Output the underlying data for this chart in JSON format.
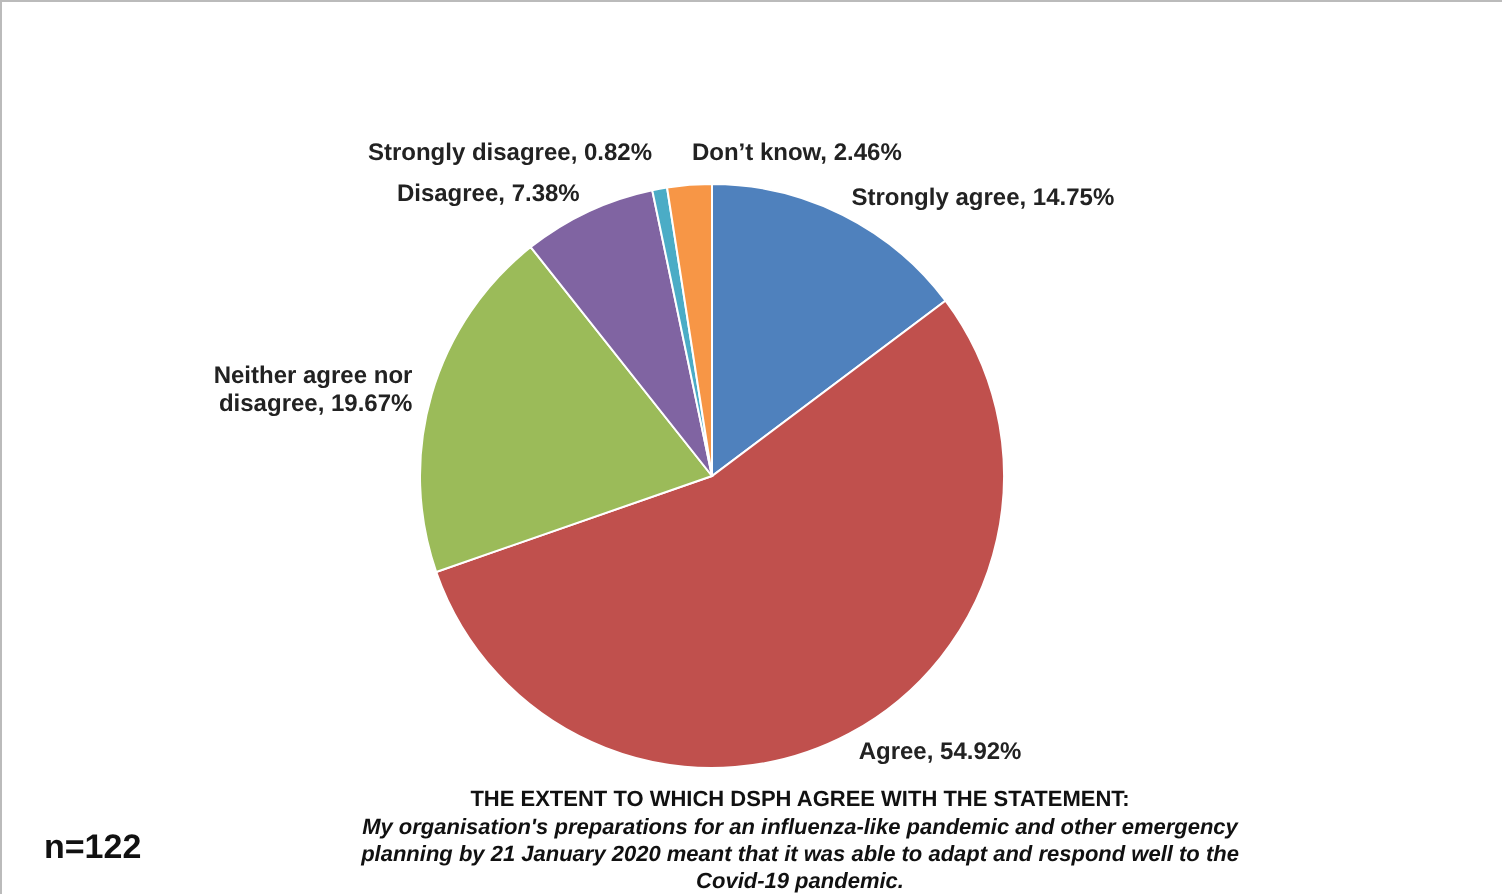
{
  "chart_data": {
    "type": "pie",
    "categories": [
      "Strongly agree",
      "Agree",
      "Neither agree nor disagree",
      "Disagree",
      "Strongly disagree",
      "Don’t know"
    ],
    "values": [
      14.75,
      54.92,
      19.67,
      7.38,
      0.82,
      2.46
    ],
    "value_labels": [
      "14.75%",
      "54.92%",
      "19.67%",
      "7.38%",
      "0.82%",
      "2.46%"
    ],
    "colors": [
      "#4f81bd",
      "#c0504d",
      "#9bbb59",
      "#8064a2",
      "#4bacc6",
      "#f79646"
    ],
    "title": "THE EXTENT TO WHICH DSPH AGREE WITH THE STATEMENT:",
    "subtitle": "My organisation's preparations for an influenza-like pandemic and other emergency planning by 21 January 2020 meant that it was able to adapt and respond well to the Covid-19 pandemic.",
    "annotations": [
      "n=122"
    ]
  }
}
